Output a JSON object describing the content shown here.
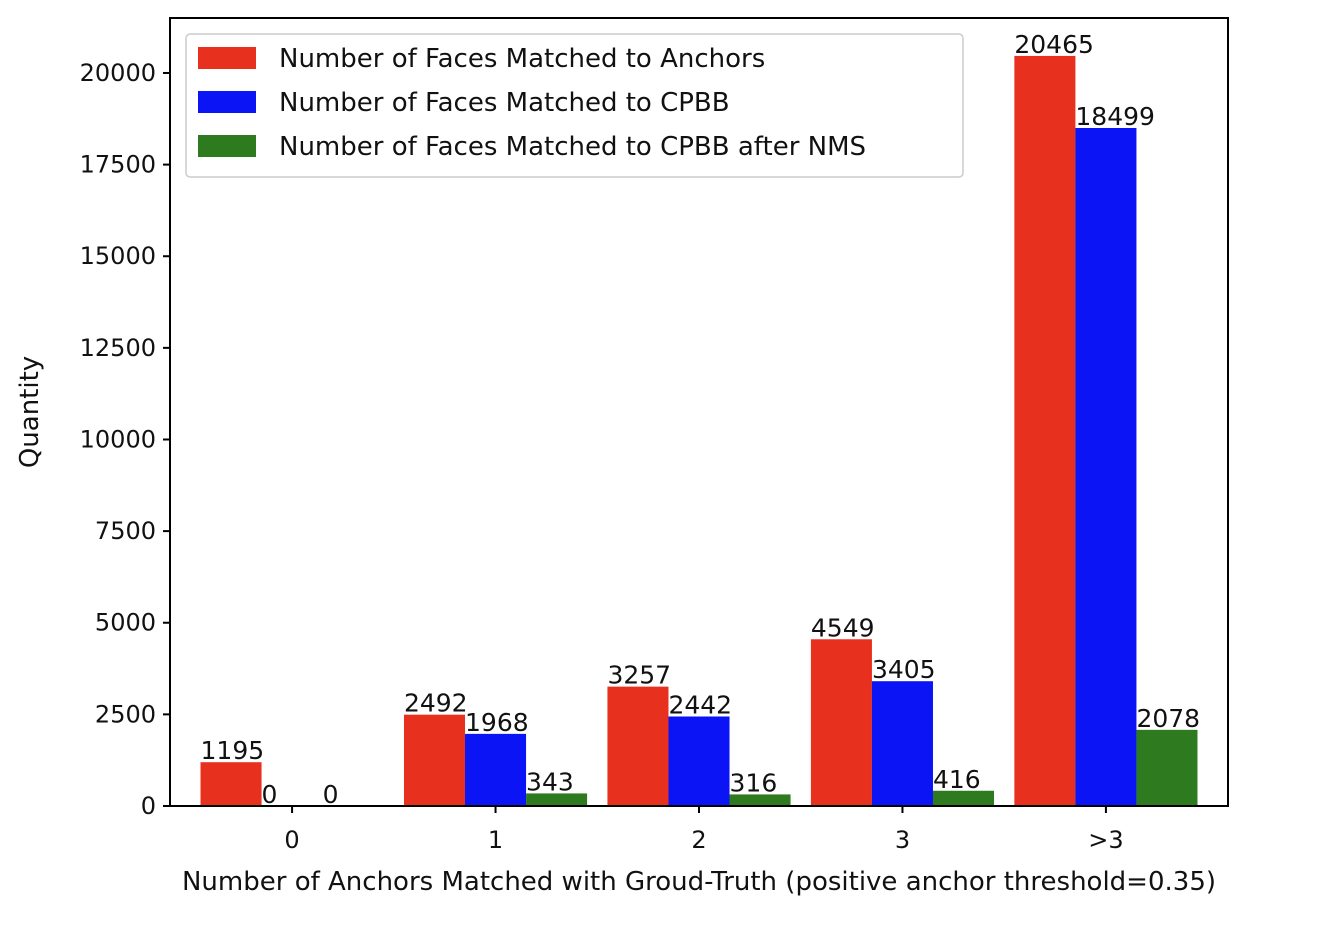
{
  "chart_data": {
    "type": "bar",
    "xlabel": "Number of Anchors Matched with Groud-Truth (positive anchor threshold=0.35)",
    "ylabel": "Quantity",
    "categories": [
      "0",
      "1",
      "2",
      "3",
      ">3"
    ],
    "ylim": [
      0,
      21500
    ],
    "yticks": [
      0,
      2500,
      5000,
      7500,
      10000,
      12500,
      15000,
      17500,
      20000
    ],
    "series": [
      {
        "name": "Number of Faces Matched to Anchors",
        "color": "#e8301e",
        "values": [
          1195,
          2492,
          3257,
          4549,
          20465
        ]
      },
      {
        "name": "Number of Faces Matched to CPBB",
        "color": "#0a14f5",
        "values": [
          0,
          1968,
          2442,
          3405,
          18499
        ]
      },
      {
        "name": "Number of Faces Matched to CPBB after NMS",
        "color": "#2e7a1e",
        "values": [
          0,
          343,
          316,
          416,
          2078
        ]
      }
    ],
    "grid": false,
    "legend_position": "top-left"
  }
}
